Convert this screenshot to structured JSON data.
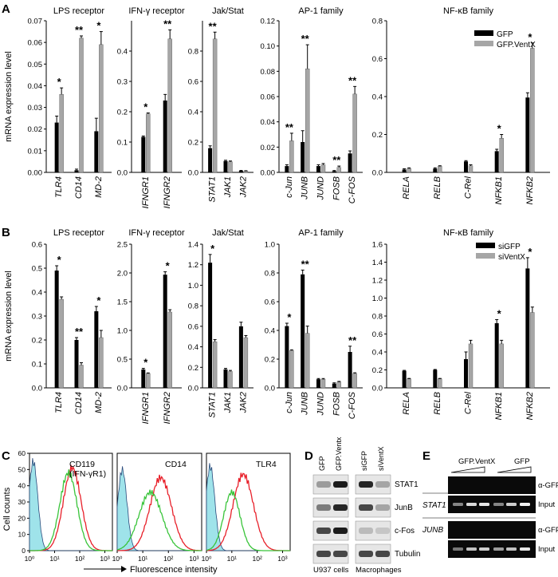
{
  "colors": {
    "black_bar": "#000000",
    "grey_bar": "#a6a6a6",
    "red_curve": "#e8202a",
    "green_curve": "#39c43a",
    "cyan_fill": "#9fe3ea"
  },
  "chart_data": [
    {
      "panel": "A",
      "type": "bar",
      "ylabel": "mRNA expression level",
      "legend": [
        "GFP",
        "GFP.VentX"
      ],
      "groups": [
        {
          "title": "LPS receptor",
          "ylim": [
            0,
            0.07
          ],
          "ticks": [
            "0.00",
            "0.01",
            "0.02",
            "0.03",
            "0.04",
            "0.05",
            "0.06",
            "0.07"
          ],
          "tick_values": [
            0,
            0.01,
            0.02,
            0.03,
            0.04,
            0.05,
            0.06,
            0.07
          ],
          "categories": [
            "TLR4",
            "CD14",
            "MD-2"
          ],
          "series": [
            {
              "values": [
                0.023,
                0.001,
                0.019
              ],
              "errors": [
                0.003,
                0.0005,
                0.006
              ]
            },
            {
              "values": [
                0.036,
                0.062,
                0.059
              ],
              "errors": [
                0.003,
                0.001,
                0.006
              ]
            }
          ],
          "stars": [
            "*",
            "**",
            "*"
          ]
        },
        {
          "title": "IFN-γ receptor",
          "ylim": [
            0,
            0.5
          ],
          "ticks": [
            "0.0",
            "0.1",
            "0.2",
            "0.3",
            "0.4"
          ],
          "tick_values": [
            0,
            0.1,
            0.2,
            0.3,
            0.4
          ],
          "categories": [
            "IFNGR1",
            "IFNGR2"
          ],
          "series": [
            {
              "values": [
                0.117,
                0.237
              ],
              "errors": [
                0.003,
                0.02
              ]
            },
            {
              "values": [
                0.193,
                0.44
              ],
              "errors": [
                0.003,
                0.03
              ]
            }
          ],
          "stars": [
            "*",
            "**"
          ]
        },
        {
          "title": "Jak/Stat",
          "ylim": [
            0,
            1.0
          ],
          "ticks": [
            "0.0",
            "0.2",
            "0.4",
            "0.6",
            "0.8"
          ],
          "tick_values": [
            0,
            0.2,
            0.4,
            0.6,
            0.8
          ],
          "categories": [
            "STAT1",
            "JAK1",
            "JAK2"
          ],
          "series": [
            {
              "values": [
                0.16,
                0.075,
                0.01
              ],
              "errors": [
                0.015,
                0.005,
                0.003
              ]
            },
            {
              "values": [
                0.88,
                0.07,
                0.008
              ],
              "errors": [
                0.045,
                0.005,
                0.003
              ]
            }
          ],
          "stars": [
            "**",
            "",
            ""
          ]
        },
        {
          "title": "AP-1 family",
          "ylim": [
            0,
            0.12
          ],
          "ticks": [
            "0.00",
            "0.02",
            "0.04",
            "0.06",
            "0.08",
            "0.10",
            "0.12"
          ],
          "tick_values": [
            0,
            0.02,
            0.04,
            0.06,
            0.08,
            0.1,
            0.12
          ],
          "categories": [
            "c-Jun",
            "JUNB",
            "JUND",
            "FOSB",
            "C-FOS"
          ],
          "series": [
            {
              "values": [
                0.005,
                0.024,
                0.005,
                0.001,
                0.015
              ],
              "errors": [
                0.001,
                0.009,
                0.001,
                0.0005,
                0.002
              ]
            },
            {
              "values": [
                0.025,
                0.082,
                0.006,
                0.004,
                0.062
              ],
              "errors": [
                0.006,
                0.019,
                0.001,
                0.001,
                0.006
              ]
            }
          ],
          "stars": [
            "**",
            "**",
            "",
            "**",
            "**"
          ]
        },
        {
          "title": "NF-κB family",
          "ylim": [
            0,
            0.8
          ],
          "ticks": [
            "0.0",
            "0.2",
            "0.4",
            "0.6",
            "0.8"
          ],
          "tick_values": [
            0,
            0.2,
            0.4,
            0.6,
            0.8
          ],
          "categories": [
            "RELA",
            "RELB",
            "C-Rel",
            "NFKB1",
            "NFKB2"
          ],
          "series": [
            {
              "values": [
                0.015,
                0.02,
                0.058,
                0.112,
                0.395
              ],
              "errors": [
                0.004,
                0.004,
                0.004,
                0.01,
                0.025
              ]
            },
            {
              "values": [
                0.02,
                0.032,
                0.035,
                0.18,
                0.655
              ],
              "errors": [
                0.004,
                0.003,
                0.005,
                0.02,
                0.028
              ]
            }
          ],
          "stars": [
            "",
            "",
            "",
            "*",
            "*"
          ]
        }
      ]
    },
    {
      "panel": "B",
      "type": "bar",
      "ylabel": "mRNA expression level",
      "legend": [
        "siGFP",
        "siVentX"
      ],
      "groups": [
        {
          "title": "LPS receptor",
          "ylim": [
            0,
            0.6
          ],
          "ticks": [
            "0.0",
            "0.1",
            "0.2",
            "0.3",
            "0.4",
            "0.5",
            "0.6"
          ],
          "tick_values": [
            0,
            0.1,
            0.2,
            0.3,
            0.4,
            0.5,
            0.6
          ],
          "categories": [
            "TLR4",
            "CD14",
            "MD-2"
          ],
          "series": [
            {
              "values": [
                0.49,
                0.2,
                0.32
              ],
              "errors": [
                0.02,
                0.01,
                0.02
              ]
            },
            {
              "values": [
                0.37,
                0.095,
                0.21
              ],
              "errors": [
                0.01,
                0.01,
                0.03
              ]
            }
          ],
          "stars": [
            "*",
            "**",
            "*"
          ]
        },
        {
          "title": "IFN-γ receptor",
          "ylim": [
            0,
            2.5
          ],
          "ticks": [
            "0.0",
            "0.5",
            "1.0",
            "1.5",
            "2.0",
            "2.5"
          ],
          "tick_values": [
            0,
            0.5,
            1,
            1.5,
            2,
            2.5
          ],
          "categories": [
            "IFNGR1",
            "IFNGR2"
          ],
          "series": [
            {
              "values": [
                0.32,
                1.97
              ],
              "errors": [
                0.02,
                0.05
              ]
            },
            {
              "values": [
                0.25,
                1.32
              ],
              "errors": [
                0.01,
                0.04
              ]
            }
          ],
          "stars": [
            "*",
            "*"
          ]
        },
        {
          "title": "Jak/Stat",
          "ylim": [
            0,
            1.4
          ],
          "ticks": [
            "0.0",
            "0.2",
            "0.4",
            "0.6",
            "0.8",
            "1.0",
            "1.2",
            "1.4"
          ],
          "tick_values": [
            0,
            0.2,
            0.4,
            0.6,
            0.8,
            1.0,
            1.2,
            1.4
          ],
          "categories": [
            "STAT1",
            "JAK1",
            "JAK2"
          ],
          "series": [
            {
              "values": [
                1.22,
                0.18,
                0.6
              ],
              "errors": [
                0.08,
                0.01,
                0.04
              ]
            },
            {
              "values": [
                0.45,
                0.16,
                0.49
              ],
              "errors": [
                0.02,
                0.01,
                0.02
              ]
            }
          ],
          "stars": [
            "*",
            "",
            ""
          ]
        },
        {
          "title": "AP-1 family",
          "ylim": [
            0,
            1.0
          ],
          "ticks": [
            "0.0",
            "0.2",
            "0.4",
            "0.6",
            "0.8",
            "1.0"
          ],
          "tick_values": [
            0,
            0.2,
            0.4,
            0.6,
            0.8,
            1.0
          ],
          "categories": [
            "c-Jun",
            "JUNB",
            "JUND",
            "FOSB",
            "C-FOS"
          ],
          "series": [
            {
              "values": [
                0.43,
                0.79,
                0.06,
                0.03,
                0.25
              ],
              "errors": [
                0.02,
                0.03,
                0.005,
                0.005,
                0.04
              ]
            },
            {
              "values": [
                0.26,
                0.38,
                0.06,
                0.04,
                0.1
              ],
              "errors": [
                0.005,
                0.05,
                0.005,
                0.005,
                0.005
              ]
            }
          ],
          "stars": [
            "*",
            "**",
            "",
            "",
            "**"
          ]
        },
        {
          "title": "NF-κB family",
          "ylim": [
            0,
            1.6
          ],
          "ticks": [
            "0.0",
            "0.2",
            "0.4",
            "0.6",
            "0.8",
            "1.0",
            "1.2",
            "1.4",
            "1.6"
          ],
          "tick_values": [
            0,
            0.2,
            0.4,
            0.6,
            0.8,
            1.0,
            1.2,
            1.4,
            1.6
          ],
          "categories": [
            "RELA",
            "RELB",
            "C-Rel",
            "NFKB1",
            "NFKB2"
          ],
          "series": [
            {
              "values": [
                0.19,
                0.2,
                0.32,
                0.72,
                1.33
              ],
              "errors": [
                0.005,
                0.005,
                0.08,
                0.04,
                0.12
              ]
            },
            {
              "values": [
                0.1,
                0.1,
                0.49,
                0.49,
                0.84
              ],
              "errors": [
                0.005,
                0.005,
                0.04,
                0.04,
                0.06
              ]
            }
          ],
          "stars": [
            "",
            "",
            "",
            "*",
            "*"
          ]
        }
      ]
    },
    {
      "panel": "C",
      "type": "line",
      "ylabel": "Cell counts",
      "xlabel": "Fluorescence intensity",
      "yticks": [
        "0",
        "10",
        "20",
        "30",
        "40",
        "50",
        "60"
      ],
      "xticks": [
        "10⁰",
        "10¹",
        "10²",
        "10³"
      ],
      "plots": [
        {
          "label_lines": [
            "CD119",
            "(IFN-γR1)"
          ]
        },
        {
          "label_lines": [
            "CD14"
          ]
        },
        {
          "label_lines": [
            "TLR4"
          ]
        }
      ]
    }
  ],
  "panel_d": {
    "label": "D",
    "lanes": [
      "GFP",
      "GFP.Ventx",
      "siGFP",
      "siVentX"
    ],
    "bands": [
      "STAT1",
      "JunB",
      "c-Fos",
      "Tubulin"
    ],
    "footer": [
      "U937 cells",
      "Macrophages"
    ]
  },
  "panel_e": {
    "label": "E",
    "groups": [
      "GFP.VentX",
      "GFP"
    ],
    "genes": [
      "STAT1",
      "JUNB"
    ],
    "rows": [
      "α-GFP",
      "Input"
    ]
  }
}
